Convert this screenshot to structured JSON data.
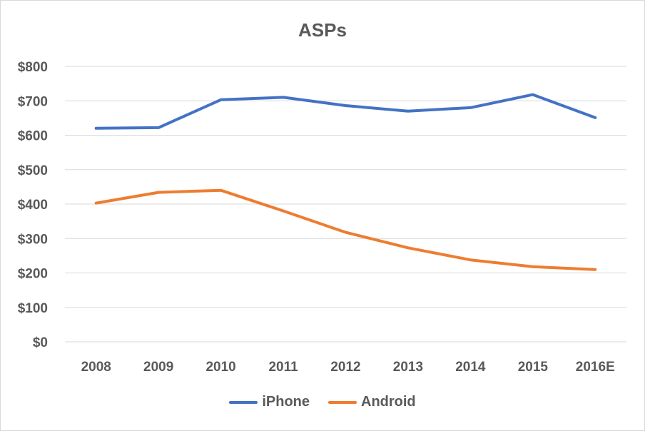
{
  "chart_data": {
    "type": "line",
    "title": "ASPs",
    "categories": [
      "2008",
      "2009",
      "2010",
      "2011",
      "2012",
      "2013",
      "2014",
      "2015",
      "2016E"
    ],
    "ylim": [
      0,
      800
    ],
    "yticks": [
      0,
      100,
      200,
      300,
      400,
      500,
      600,
      700,
      800
    ],
    "ytick_labels": [
      "$0",
      "$100",
      "$200",
      "$300",
      "$400",
      "$500",
      "$600",
      "$700",
      "$800"
    ],
    "grid": true,
    "legend_position": "bottom",
    "series": [
      {
        "name": "iPhone",
        "color": "#4472c4",
        "values": [
          620,
          622,
          703,
          710,
          686,
          670,
          680,
          718,
          651
        ]
      },
      {
        "name": "Android",
        "color": "#ed7d31",
        "values": [
          403,
          434,
          440,
          380,
          318,
          273,
          238,
          218,
          210
        ]
      }
    ]
  }
}
